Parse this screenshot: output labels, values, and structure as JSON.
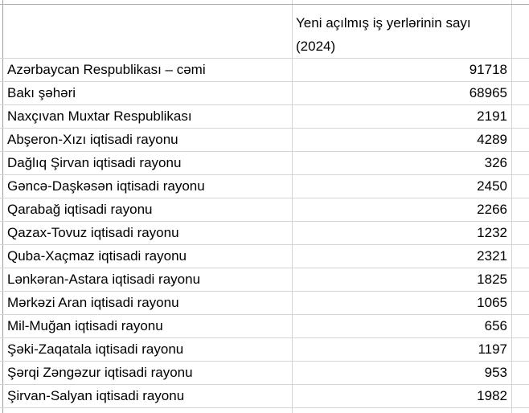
{
  "header": {
    "line1": "Yeni açılmış iş yerlərinin sayı",
    "line2": "(2024)"
  },
  "rows": [
    {
      "name": "Azərbaycan Respublikası – cəmi",
      "value": "91718"
    },
    {
      "name": "Bakı şəhəri",
      "value": "68965"
    },
    {
      "name": "Naxçıvan Muxtar Respublikası",
      "value": "2191"
    },
    {
      "name": "Abşeron-Xızı iqtisadi rayonu",
      "value": "4289"
    },
    {
      "name": "Dağlıq Şirvan iqtisadi rayonu",
      "value": "326"
    },
    {
      "name": "Gəncə-Daşkəsən iqtisadi rayonu",
      "value": "2450"
    },
    {
      "name": "Qarabağ iqtisadi rayonu",
      "value": "2266"
    },
    {
      "name": "Qazax-Tovuz iqtisadi rayonu",
      "value": "1232"
    },
    {
      "name": "Quba-Xaçmaz iqtisadi rayonu",
      "value": "2321"
    },
    {
      "name": "Lənkəran-Astara iqtisadi rayonu",
      "value": "1825"
    },
    {
      "name": "Mərkəzi Aran iqtisadi rayonu",
      "value": "1065"
    },
    {
      "name": "Mil-Muğan iqtisadi rayonu",
      "value": "656"
    },
    {
      "name": "Şəki-Zaqatala iqtisadi rayonu",
      "value": "1197"
    },
    {
      "name": "Şərqi Zəngəzur iqtisadi rayonu",
      "value": "953"
    },
    {
      "name": "Şirvan-Salyan iqtisadi rayonu",
      "value": "1982"
    }
  ]
}
